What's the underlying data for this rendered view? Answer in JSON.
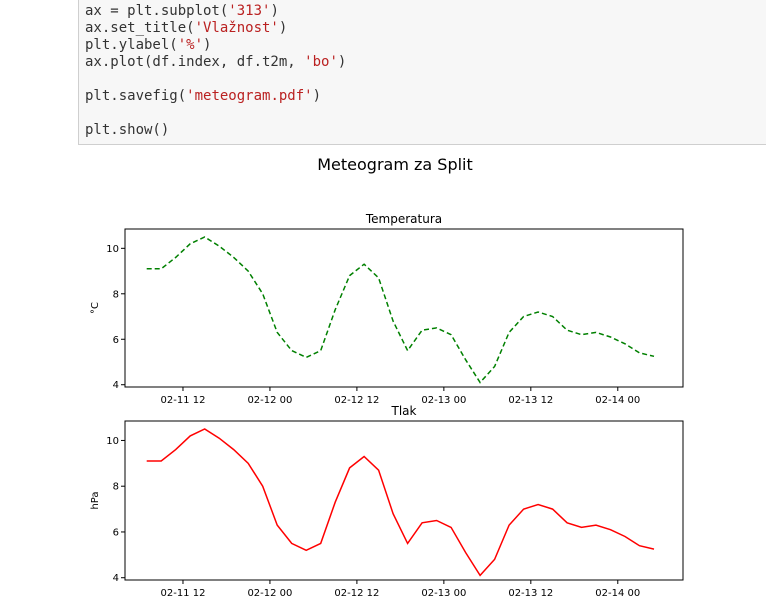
{
  "code": [
    [
      "ax = plt.subplot(",
      "'313'",
      ")"
    ],
    [
      "ax.set_title(",
      "'Vlažnost'",
      ")"
    ],
    [
      "plt.ylabel(",
      "'%'",
      ")"
    ],
    [
      "ax.plot(df.index, df.t2m, ",
      "'bo'",
      ")"
    ],
    [],
    [
      "plt.savefig(",
      "'meteogram.pdf'",
      ")"
    ],
    [],
    [
      "plt.show()"
    ]
  ],
  "suptitle": "Meteogram za Split",
  "chart_data": [
    {
      "type": "line",
      "title": "Temperatura",
      "ylabel": "°C",
      "x": [
        "02-11 07",
        "02-11 09",
        "02-11 11",
        "02-11 13",
        "02-11 15",
        "02-11 17",
        "02-11 19",
        "02-11 21",
        "02-11 23",
        "02-12 01",
        "02-12 03",
        "02-12 05",
        "02-12 07",
        "02-12 09",
        "02-12 11",
        "02-12 13",
        "02-12 15",
        "02-12 17",
        "02-12 19",
        "02-12 21",
        "02-12 23",
        "02-13 01",
        "02-13 03",
        "02-13 05",
        "02-13 07",
        "02-13 09",
        "02-13 11",
        "02-13 13",
        "02-13 15",
        "02-13 17",
        "02-13 19",
        "02-13 21",
        "02-13 23",
        "02-14 01",
        "02-14 03",
        "02-14 05"
      ],
      "series": [
        {
          "name": "t2m",
          "color": "#008000",
          "dashed": true,
          "values": [
            9.1,
            9.1,
            9.6,
            10.2,
            10.5,
            10.1,
            9.6,
            9.0,
            8.0,
            6.3,
            5.5,
            5.2,
            5.5,
            7.3,
            8.8,
            9.3,
            8.7,
            6.8,
            5.5,
            6.4,
            6.5,
            6.2,
            5.1,
            4.1,
            4.8,
            6.3,
            7.0,
            7.2,
            7.0,
            6.4,
            6.2,
            6.3,
            6.1,
            5.8,
            5.4,
            5.25
          ]
        }
      ],
      "xlim": [
        "02-11 04",
        "02-14 09"
      ],
      "xticks": [
        "02-11 12",
        "02-12 00",
        "02-12 12",
        "02-13 00",
        "02-13 12",
        "02-14 00"
      ],
      "ylim": [
        3.9,
        10.85
      ],
      "yticks": [
        4,
        6,
        8,
        10
      ]
    },
    {
      "type": "line",
      "title": "Tlak",
      "ylabel": "hPa",
      "x": [
        "02-11 07",
        "02-11 09",
        "02-11 11",
        "02-11 13",
        "02-11 15",
        "02-11 17",
        "02-11 19",
        "02-11 21",
        "02-11 23",
        "02-12 01",
        "02-12 03",
        "02-12 05",
        "02-12 07",
        "02-12 09",
        "02-12 11",
        "02-12 13",
        "02-12 15",
        "02-12 17",
        "02-12 19",
        "02-12 21",
        "02-12 23",
        "02-13 01",
        "02-13 03",
        "02-13 05",
        "02-13 07",
        "02-13 09",
        "02-13 11",
        "02-13 13",
        "02-13 15",
        "02-13 17",
        "02-13 19",
        "02-13 21",
        "02-13 23",
        "02-14 01",
        "02-14 03",
        "02-14 05"
      ],
      "series": [
        {
          "name": "t2m",
          "color": "#ff0000",
          "dashed": false,
          "values": [
            9.1,
            9.1,
            9.6,
            10.2,
            10.5,
            10.1,
            9.6,
            9.0,
            8.0,
            6.3,
            5.5,
            5.2,
            5.5,
            7.3,
            8.8,
            9.3,
            8.7,
            6.8,
            5.5,
            6.4,
            6.5,
            6.2,
            5.1,
            4.1,
            4.8,
            6.3,
            7.0,
            7.2,
            7.0,
            6.4,
            6.2,
            6.3,
            6.1,
            5.8,
            5.4,
            5.25
          ]
        }
      ],
      "xlim": [
        "02-11 04",
        "02-14 09"
      ],
      "xticks": [
        "02-11 12",
        "02-12 00",
        "02-12 12",
        "02-13 00",
        "02-13 12",
        "02-14 00"
      ],
      "ylim": [
        3.9,
        10.85
      ],
      "yticks": [
        4,
        6,
        8,
        10
      ]
    }
  ]
}
